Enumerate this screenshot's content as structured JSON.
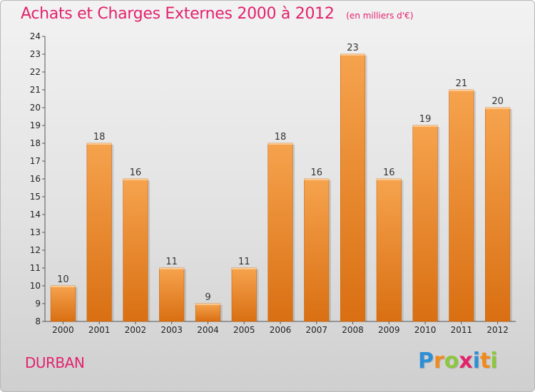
{
  "title": "Achats et Charges Externes 2000 à 2012",
  "unit": "(en milliers d'€)",
  "city": "DURBAN",
  "logo": {
    "letters": [
      "P",
      "r",
      "o",
      "x",
      "i",
      "t",
      "i"
    ],
    "colors": [
      "#2f8fd6",
      "#f08a1c",
      "#8dc63f",
      "#e2226b",
      "#2f8fd6",
      "#f08a1c",
      "#8dc63f"
    ]
  },
  "colors": {
    "bar_top": "#f6a34e",
    "bar_bottom": "#d96f12",
    "title": "#e2226b"
  },
  "chart_data": {
    "type": "bar",
    "title": "Achats et Charges Externes 2000 à 2012",
    "subtitle": "(en milliers d'€)",
    "categories": [
      "2000",
      "2001",
      "2002",
      "2003",
      "2004",
      "2005",
      "2006",
      "2007",
      "2008",
      "2009",
      "2010",
      "2011",
      "2012"
    ],
    "values": [
      10,
      18,
      16,
      11,
      9,
      11,
      18,
      16,
      23,
      16,
      19,
      21,
      20
    ],
    "ylim": [
      8,
      24
    ],
    "yticks": [
      8,
      9,
      10,
      11,
      12,
      13,
      14,
      15,
      16,
      17,
      18,
      19,
      20,
      21,
      22,
      23,
      24
    ],
    "grid": false,
    "data_labels": true
  }
}
